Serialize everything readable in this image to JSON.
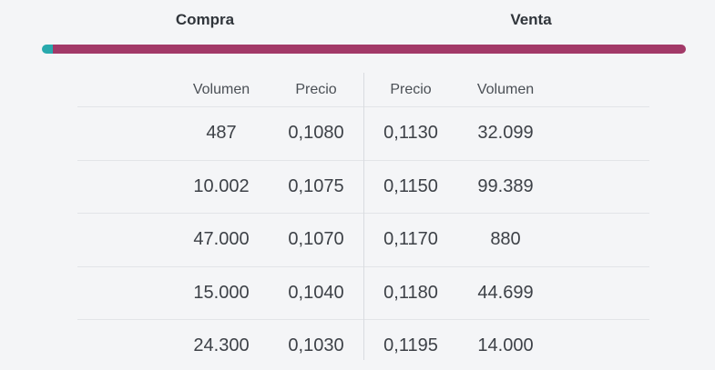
{
  "sides": {
    "compra_label": "Compra",
    "venta_label": "Venta"
  },
  "depth_bar": {
    "compra_color": "#28a9ad",
    "venta_color": "#a23968",
    "compra_pct": 1.7,
    "venta_pct": 98.3
  },
  "table": {
    "columns": {
      "compra_volumen": "Volumen",
      "compra_precio": "Precio",
      "venta_precio": "Precio",
      "venta_volumen": "Volumen"
    },
    "rows": [
      {
        "compra_volumen": "487",
        "compra_precio": "0,1080",
        "venta_precio": "0,1130",
        "venta_volumen": "32.099"
      },
      {
        "compra_volumen": "10.002",
        "compra_precio": "0,1075",
        "venta_precio": "0,1150",
        "venta_volumen": "99.389"
      },
      {
        "compra_volumen": "47.000",
        "compra_precio": "0,1070",
        "venta_precio": "0,1170",
        "venta_volumen": "880"
      },
      {
        "compra_volumen": "15.000",
        "compra_precio": "0,1040",
        "venta_precio": "0,1180",
        "venta_volumen": "44.699"
      },
      {
        "compra_volumen": "24.300",
        "compra_precio": "0,1030",
        "venta_precio": "0,1195",
        "venta_volumen": "14.000"
      }
    ]
  }
}
